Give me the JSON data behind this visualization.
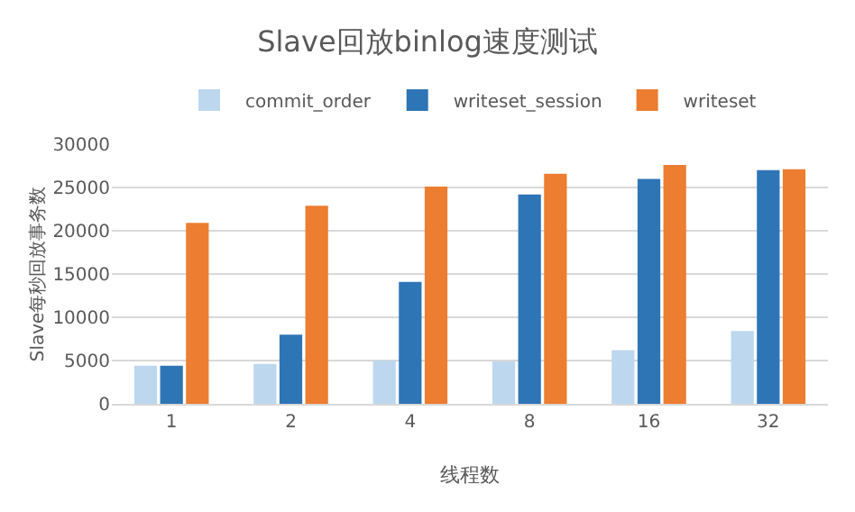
{
  "chart_data": {
    "type": "bar",
    "title": "Slave回放binlog速度测试",
    "xlabel": "线程数",
    "ylabel": "Slave每秒回放事务数",
    "categories": [
      "1",
      "2",
      "4",
      "8",
      "16",
      "32"
    ],
    "series": [
      {
        "name": "commit_order",
        "color": "#bdd7ee",
        "values": [
          4400,
          4600,
          5000,
          4900,
          6200,
          8400
        ]
      },
      {
        "name": "writeset_session",
        "color": "#2e75b6",
        "values": [
          4400,
          8000,
          14100,
          24200,
          26000,
          27000
        ]
      },
      {
        "name": "writeset",
        "color": "#ed7d31",
        "values": [
          20900,
          22900,
          25100,
          26600,
          27600,
          27100
        ]
      }
    ],
    "ylim": [
      0,
      30000
    ],
    "yticks": [
      0,
      5000,
      10000,
      15000,
      20000,
      25000,
      30000
    ],
    "grid": "y",
    "legend": "top"
  }
}
